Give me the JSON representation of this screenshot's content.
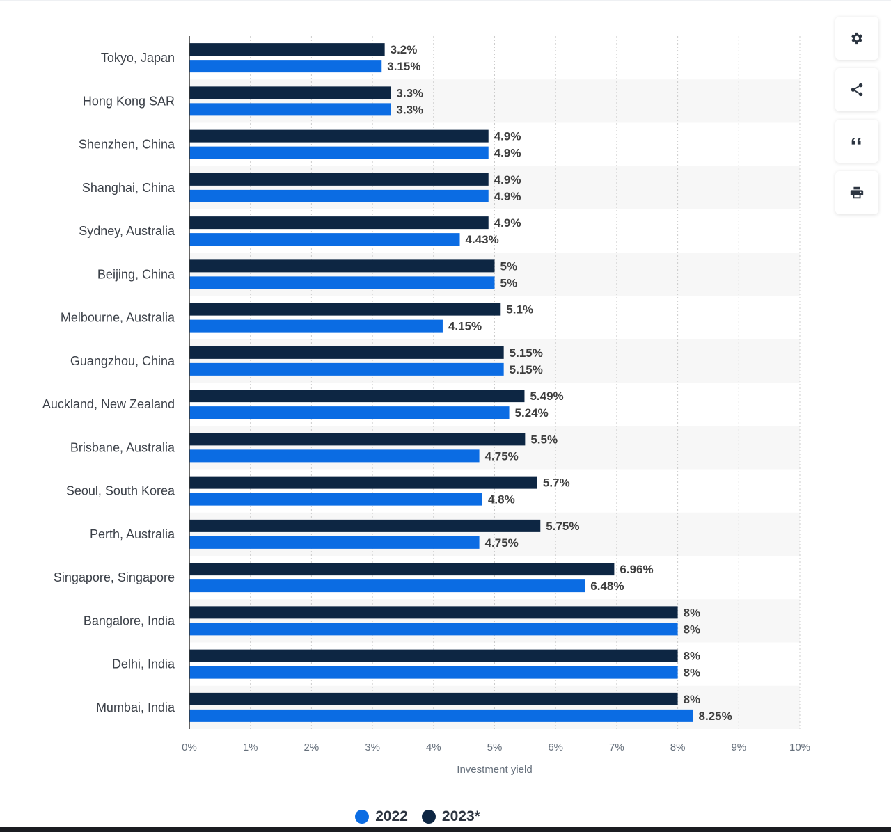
{
  "colors": {
    "series_2022": "#0b6ce3",
    "series_2023": "#0d2643",
    "axis": "#333333",
    "grid": "#cccccc",
    "band": "#f7f7f7",
    "label": "#3a3f47",
    "value": "#3e3e3e"
  },
  "toolbar": {
    "buttons": [
      {
        "icon": "gear-icon"
      },
      {
        "icon": "share-icon"
      },
      {
        "icon": "quote-icon"
      },
      {
        "icon": "print-icon"
      }
    ]
  },
  "legend": {
    "items": [
      {
        "label": "2022",
        "color": "#0b6ce3"
      },
      {
        "label": "2023*",
        "color": "#0d2643"
      }
    ]
  },
  "chart_data": {
    "type": "bar",
    "orientation": "horizontal",
    "title": "",
    "xlabel": "Investment yield",
    "ylabel": "",
    "xlim": [
      0,
      10
    ],
    "x_ticks": [
      "0%",
      "1%",
      "2%",
      "3%",
      "4%",
      "5%",
      "6%",
      "7%",
      "8%",
      "9%",
      "10%"
    ],
    "grid": true,
    "legend_position": "bottom",
    "categories": [
      "Tokyo, Japan",
      "Hong Kong SAR",
      "Shenzhen, China",
      "Shanghai, China",
      "Sydney, Australia",
      "Beijing, China",
      "Melbourne, Australia",
      "Guangzhou, China",
      "Auckland, New Zealand",
      "Brisbane, Australia",
      "Seoul, South Korea",
      "Perth, Australia",
      "Singapore, Singapore",
      "Bangalore, India",
      "Delhi, India",
      "Mumbai, India"
    ],
    "series": [
      {
        "name": "2023*",
        "values": [
          3.2,
          3.3,
          4.9,
          4.9,
          4.9,
          5,
          5.1,
          5.15,
          5.49,
          5.5,
          5.7,
          5.75,
          6.96,
          8,
          8,
          8
        ],
        "labels": [
          "3.2%",
          "3.3%",
          "4.9%",
          "4.9%",
          "4.9%",
          "5%",
          "5.1%",
          "5.15%",
          "5.49%",
          "5.5%",
          "5.7%",
          "5.75%",
          "6.96%",
          "8%",
          "8%",
          "8%"
        ]
      },
      {
        "name": "2022",
        "values": [
          3.15,
          3.3,
          4.9,
          4.9,
          4.43,
          5,
          4.15,
          5.15,
          5.24,
          4.75,
          4.8,
          4.75,
          6.48,
          8,
          8,
          8.25
        ],
        "labels": [
          "3.15%",
          "3.3%",
          "4.9%",
          "4.9%",
          "4.43%",
          "5%",
          "4.15%",
          "5.15%",
          "5.24%",
          "4.75%",
          "4.8%",
          "4.75%",
          "6.48%",
          "8%",
          "8%",
          "8.25%"
        ]
      }
    ]
  }
}
